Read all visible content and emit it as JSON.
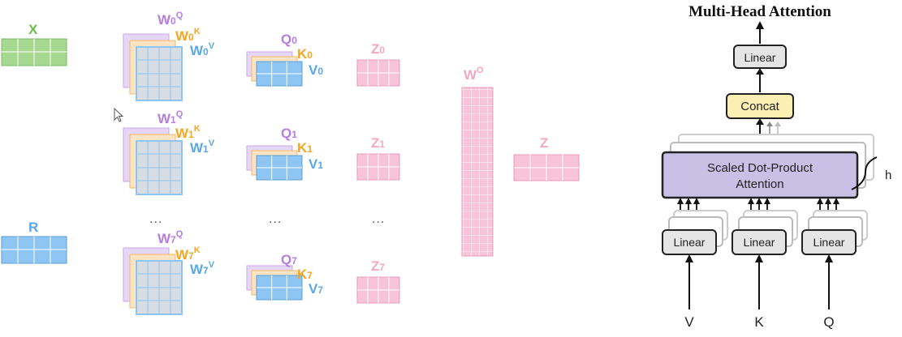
{
  "left": {
    "x_label": "X",
    "r_label": "R",
    "heads": [
      {
        "w": "W",
        "idx": "0",
        "q": "Q",
        "k": "K",
        "v": "V",
        "qv": "Q",
        "kv": "K",
        "vv": "V",
        "z": "Z"
      },
      {
        "w": "W",
        "idx": "1",
        "q": "Q",
        "k": "K",
        "v": "V",
        "qv": "Q",
        "kv": "K",
        "vv": "V",
        "z": "Z"
      },
      {
        "w": "W",
        "idx": "7",
        "q": "Q",
        "k": "K",
        "v": "V",
        "qv": "Q",
        "kv": "K",
        "vv": "V",
        "z": "Z"
      }
    ],
    "ellipsis": "...",
    "wo_label": "W",
    "wo_sup": "O",
    "z_label": "Z"
  },
  "right": {
    "title": "Multi-Head Attention",
    "linear_top": "Linear",
    "concat": "Concat",
    "sdpa_line1": "Scaled Dot-Product",
    "sdpa_line2": "Attention",
    "h_label": "h",
    "linear_v": "Linear",
    "linear_k": "Linear",
    "linear_q": "Linear",
    "input_v": "V",
    "input_k": "K",
    "input_q": "Q"
  },
  "colors": {
    "green": "#a6d98f",
    "blue": "#8ec5f2",
    "purple": "#d9c2ef",
    "orange": "#f8cf94",
    "pink": "#f8c4d8",
    "linear_box": "#e5e5e5",
    "concat_box": "#fbefb4",
    "sdpa_box": "#c9c0e6"
  }
}
